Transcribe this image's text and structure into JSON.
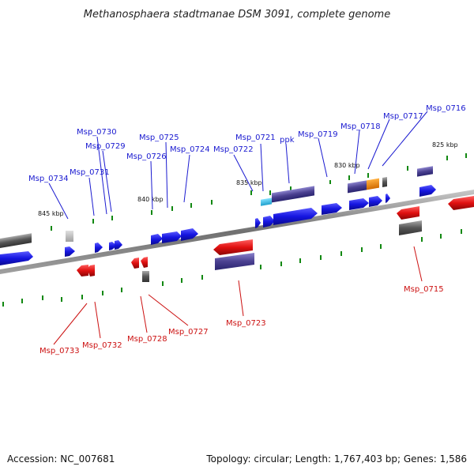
{
  "title": "Methanosphaera stadtmanae DSM 3091, complete genome",
  "colors": {
    "forward_gene": "#1a1ad0",
    "reverse_gene": "#cc1111",
    "rna_or_other": "#555555",
    "cds_feature": "#5a4fa0",
    "cyan_feature": "#33bbdd",
    "orange_feature": "#ee8800",
    "tick": "#118811",
    "backbone": "#888888"
  },
  "scale": {
    "ticks_kbp": [
      "825 kbp",
      "830 kbp",
      "835 kbp",
      "840 kbp",
      "845 kbp"
    ]
  },
  "genes_forward": [
    {
      "label": "Msp_0716"
    },
    {
      "label": "Msp_0717"
    },
    {
      "label": "Msp_0718"
    },
    {
      "label": "Msp_0719"
    },
    {
      "label": "ppk"
    },
    {
      "label": "Msp_0721"
    },
    {
      "label": "Msp_0722"
    },
    {
      "label": "Msp_0724"
    },
    {
      "label": "Msp_0725"
    },
    {
      "label": "Msp_0726"
    },
    {
      "label": "Msp_0729"
    },
    {
      "label": "Msp_0730"
    },
    {
      "label": "Msp_0731"
    },
    {
      "label": "Msp_0734"
    }
  ],
  "genes_reverse": [
    {
      "label": "Msp_0715"
    },
    {
      "label": "Msp_0723"
    },
    {
      "label": "Msp_0727"
    },
    {
      "label": "Msp_0728"
    },
    {
      "label": "Msp_0732"
    },
    {
      "label": "Msp_0733"
    }
  ],
  "footer": {
    "accession": "Accession: NC_007681",
    "summary": "Topology: circular; Length: 1,767,403 bp; Genes: 1,586"
  }
}
